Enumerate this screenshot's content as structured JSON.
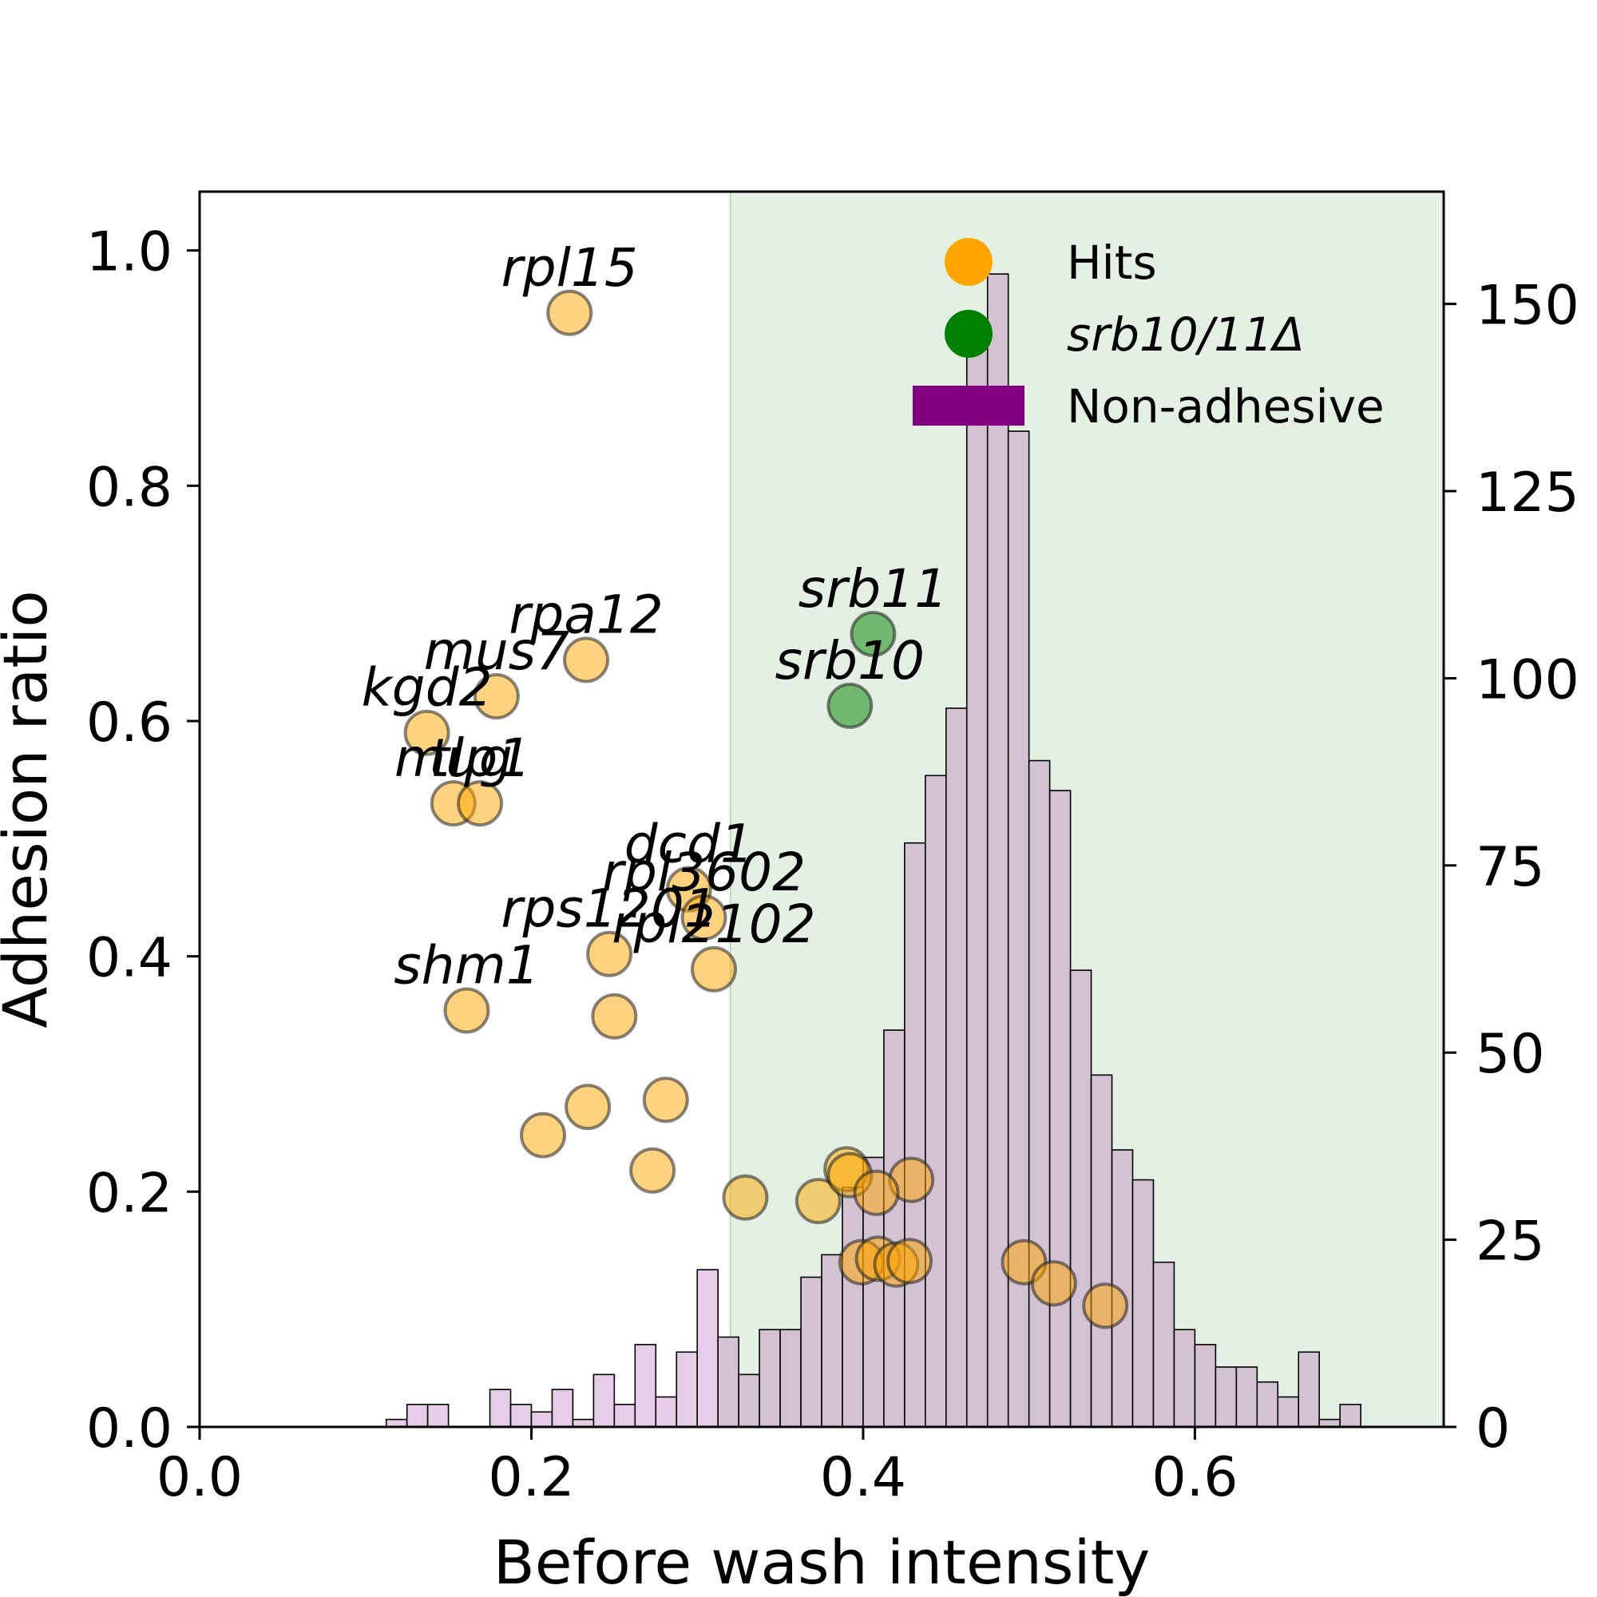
{
  "chart_data": {
    "type": "scatter",
    "xlabel": "Before wash intensity",
    "ylabel": "Adhesion ratio",
    "xlim": [
      0.0,
      0.75
    ],
    "ylim": [
      0.0,
      1.05
    ],
    "y2lim": [
      0,
      165
    ],
    "x_ticks": [
      "0.0",
      "0.2",
      "0.4",
      "0.6"
    ],
    "x_tick_values": [
      0.0,
      0.2,
      0.4,
      0.6
    ],
    "y_ticks": [
      "0.0",
      "0.2",
      "0.4",
      "0.6",
      "0.8",
      "1.0"
    ],
    "y_tick_values": [
      0.0,
      0.2,
      0.4,
      0.6,
      0.8,
      1.0
    ],
    "y2_ticks": [
      "0",
      "25",
      "50",
      "75",
      "100",
      "125",
      "150"
    ],
    "y2_tick_values": [
      0,
      25,
      50,
      75,
      100,
      125,
      150
    ],
    "grid": false,
    "legend_position": "top-right",
    "threshold_x": 0.32,
    "colors": {
      "hits": "#ffa500",
      "srb": "#008000",
      "non_adhesive": "#800080",
      "histogram": "#d2c2d2",
      "histogram_below": "#e6cce6",
      "shade": "#e3f0e3"
    },
    "legend": [
      {
        "label": "Hits",
        "marker": "circle",
        "color": "#ffa500",
        "italic": false
      },
      {
        "label": "srb10/11Δ",
        "marker": "circle",
        "color": "#008000",
        "italic": true
      },
      {
        "label": "Non-adhesive",
        "marker": "bar",
        "color": "#800080",
        "italic": false
      }
    ],
    "histogram": {
      "bin_start": 0.1125,
      "bin_width": 0.0125,
      "counts": [
        1,
        3,
        3,
        0,
        0,
        5,
        3,
        2,
        5,
        1,
        7,
        3,
        11,
        4,
        10,
        21,
        12,
        7,
        13,
        13,
        20,
        23,
        32,
        36,
        53,
        78,
        87,
        96,
        144,
        154,
        133,
        89,
        85,
        61,
        47,
        37,
        33,
        22,
        13,
        11,
        8,
        8,
        6,
        4,
        10,
        1,
        3
      ]
    },
    "series": [
      {
        "name": "Hits",
        "points": [
          {
            "x": 0.223,
            "y": 0.947,
            "label": "rpl15"
          },
          {
            "x": 0.233,
            "y": 0.652,
            "label": "rpa12"
          },
          {
            "x": 0.179,
            "y": 0.621,
            "label": "mus7"
          },
          {
            "x": 0.137,
            "y": 0.59,
            "label": "kgd2"
          },
          {
            "x": 0.153,
            "y": 0.53,
            "label": "mug"
          },
          {
            "x": 0.169,
            "y": 0.53,
            "label": "tlp1"
          },
          {
            "x": 0.295,
            "y": 0.457,
            "label": "dcd1"
          },
          {
            "x": 0.304,
            "y": 0.433,
            "label": "rpl3602"
          },
          {
            "x": 0.247,
            "y": 0.402,
            "label": "rps1201"
          },
          {
            "x": 0.31,
            "y": 0.389,
            "label": "rpl2102"
          },
          {
            "x": 0.161,
            "y": 0.354,
            "label": "shm1"
          },
          {
            "x": 0.25,
            "y": 0.349,
            "label": ""
          },
          {
            "x": 0.281,
            "y": 0.278,
            "label": ""
          },
          {
            "x": 0.234,
            "y": 0.272,
            "label": ""
          },
          {
            "x": 0.207,
            "y": 0.248,
            "label": ""
          },
          {
            "x": 0.273,
            "y": 0.218,
            "label": ""
          },
          {
            "x": 0.329,
            "y": 0.195,
            "label": ""
          },
          {
            "x": 0.373,
            "y": 0.192,
            "label": ""
          },
          {
            "x": 0.39,
            "y": 0.219,
            "label": ""
          },
          {
            "x": 0.392,
            "y": 0.214,
            "label": ""
          },
          {
            "x": 0.429,
            "y": 0.21,
            "label": ""
          },
          {
            "x": 0.408,
            "y": 0.199,
            "label": ""
          },
          {
            "x": 0.399,
            "y": 0.14,
            "label": ""
          },
          {
            "x": 0.409,
            "y": 0.143,
            "label": ""
          },
          {
            "x": 0.42,
            "y": 0.138,
            "label": ""
          },
          {
            "x": 0.428,
            "y": 0.141,
            "label": ""
          },
          {
            "x": 0.497,
            "y": 0.14,
            "label": ""
          },
          {
            "x": 0.515,
            "y": 0.122,
            "label": ""
          },
          {
            "x": 0.546,
            "y": 0.103,
            "label": ""
          }
        ]
      },
      {
        "name": "srb10/11Δ",
        "points": [
          {
            "x": 0.406,
            "y": 0.674,
            "label": "srb11"
          },
          {
            "x": 0.392,
            "y": 0.613,
            "label": "srb10"
          }
        ]
      }
    ]
  }
}
